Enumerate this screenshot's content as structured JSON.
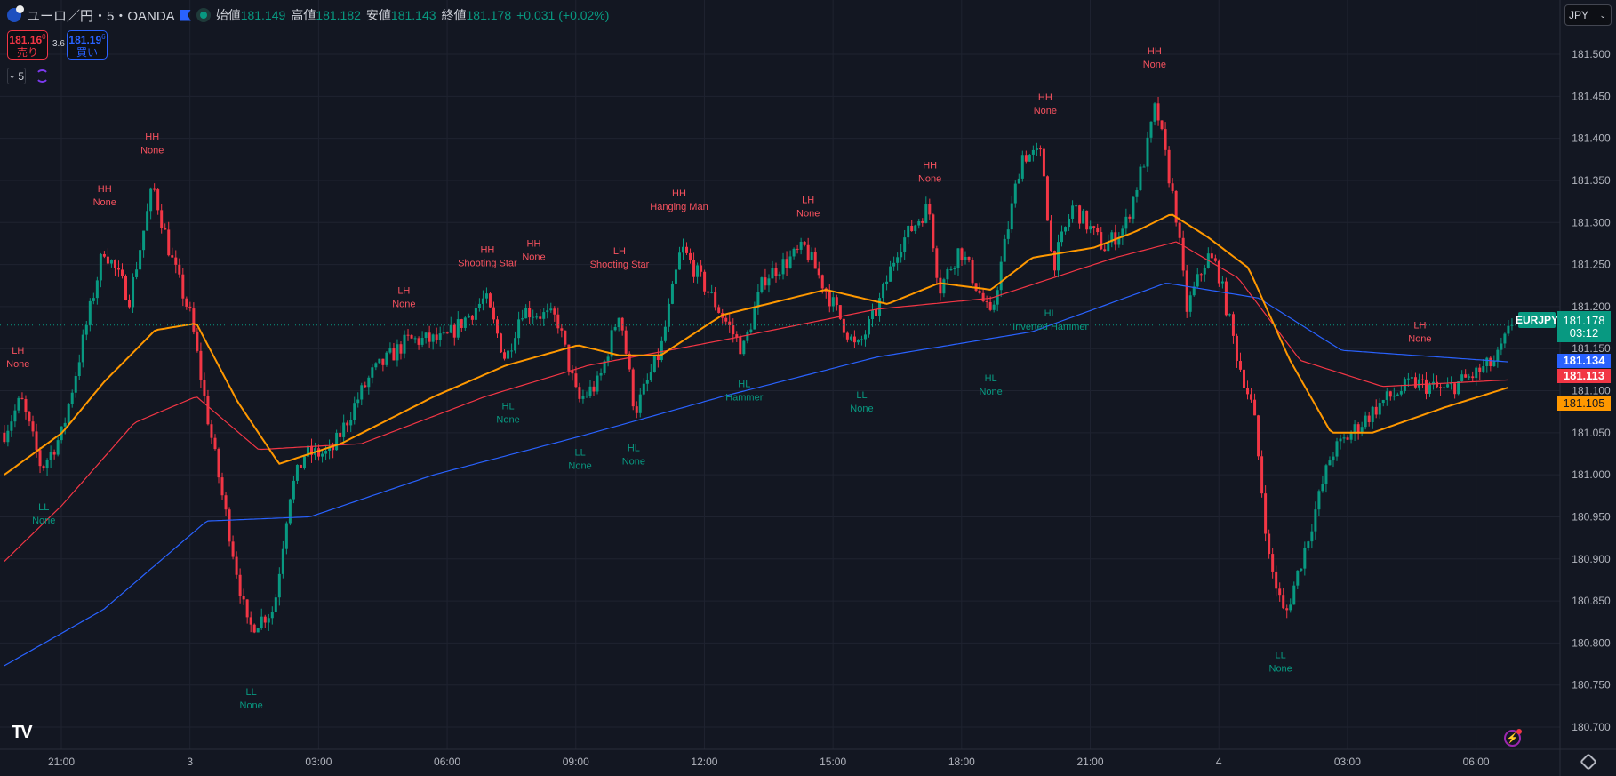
{
  "header": {
    "symbol": "ユーロ／円・5・OANDA",
    "open_label": "始値",
    "open": "181.149",
    "high_label": "高値",
    "high": "181.182",
    "low_label": "安値",
    "low": "181.143",
    "close_label": "終値",
    "close": "181.178",
    "change": "+0.031 (+0.02%)"
  },
  "trade": {
    "sell_price": "181.16",
    "sell_sup": "0",
    "sell_label": "売り",
    "spread": "3.6",
    "buy_price": "181.19",
    "buy_sup": "6",
    "buy_label": "買い"
  },
  "interval": "5",
  "currency": "JPY",
  "badges": {
    "symbol": "EURJPY",
    "price": "181.178",
    "countdown": "03:12",
    "blue": "181.134",
    "red": "181.113",
    "orange": "181.105"
  },
  "colors": {
    "up": "#089981",
    "down": "#f23645",
    "ma_fast": "#ff9800",
    "ma_mid": "#f23645",
    "ma_slow": "#2962ff",
    "label_red": "#f7525f",
    "label_green": "#089981"
  },
  "chart_data": {
    "type": "candlestick",
    "time_unit": "hours from 21:00 (day 2)",
    "ylim": [
      180.68,
      181.53
    ],
    "y_ticks": [
      "181.500",
      "181.450",
      "181.400",
      "181.350",
      "181.300",
      "181.250",
      "181.200",
      "181.150",
      "181.100",
      "181.050",
      "181.000",
      "180.950",
      "180.900",
      "180.850",
      "180.800",
      "180.750",
      "180.700"
    ],
    "x_ticks": [
      {
        "t": 0,
        "label": "21:00"
      },
      {
        "t": 3,
        "label": "3"
      },
      {
        "t": 6,
        "label": "03:00"
      },
      {
        "t": 9,
        "label": "06:00"
      },
      {
        "t": 12,
        "label": "09:00"
      },
      {
        "t": 15,
        "label": "12:00"
      },
      {
        "t": 18,
        "label": "15:00"
      },
      {
        "t": 21,
        "label": "18:00"
      },
      {
        "t": 24,
        "label": "21:00"
      },
      {
        "t": 27,
        "label": "4"
      },
      {
        "t": 30,
        "label": "03:00"
      },
      {
        "t": 33,
        "label": "06:00"
      }
    ],
    "price_path": [
      [
        -1.33,
        181.05
      ],
      [
        -0.94,
        181.09
      ],
      [
        -0.46,
        181.007
      ],
      [
        0.02,
        181.05
      ],
      [
        0.51,
        181.16
      ],
      [
        0.99,
        181.27
      ],
      [
        1.59,
        181.21
      ],
      [
        2.14,
        181.344
      ],
      [
        2.55,
        181.26
      ],
      [
        3.03,
        181.185
      ],
      [
        3.39,
        181.075
      ],
      [
        3.75,
        180.976
      ],
      [
        4.35,
        180.817
      ],
      [
        4.96,
        180.84
      ],
      [
        5.32,
        180.976
      ],
      [
        5.68,
        181.025
      ],
      [
        6.28,
        181.025
      ],
      [
        6.88,
        181.087
      ],
      [
        7.24,
        181.12
      ],
      [
        8.08,
        181.16
      ],
      [
        8.93,
        181.16
      ],
      [
        9.89,
        181.21
      ],
      [
        10.37,
        181.136
      ],
      [
        10.73,
        181.197
      ],
      [
        11.57,
        181.185
      ],
      [
        12.05,
        181.087
      ],
      [
        12.54,
        181.11
      ],
      [
        13.02,
        181.197
      ],
      [
        13.38,
        181.075
      ],
      [
        13.98,
        181.148
      ],
      [
        14.46,
        181.27
      ],
      [
        15.18,
        181.21
      ],
      [
        15.9,
        181.148
      ],
      [
        16.39,
        181.234
      ],
      [
        17.35,
        181.27
      ],
      [
        17.83,
        181.22
      ],
      [
        18.55,
        181.148
      ],
      [
        19.03,
        181.197
      ],
      [
        19.51,
        181.27
      ],
      [
        20.23,
        181.32
      ],
      [
        20.48,
        181.22
      ],
      [
        20.96,
        181.27
      ],
      [
        21.68,
        181.185
      ],
      [
        22.4,
        181.38
      ],
      [
        22.88,
        181.38
      ],
      [
        23.12,
        181.246
      ],
      [
        23.6,
        181.32
      ],
      [
        24.32,
        181.27
      ],
      [
        24.81,
        181.295
      ],
      [
        25.29,
        181.38
      ],
      [
        25.53,
        181.44
      ],
      [
        26.01,
        181.307
      ],
      [
        26.25,
        181.197
      ],
      [
        26.73,
        181.26
      ],
      [
        26.97,
        181.246
      ],
      [
        27.45,
        181.136
      ],
      [
        27.81,
        181.075
      ],
      [
        28.17,
        180.9
      ],
      [
        28.54,
        180.83
      ],
      [
        29.02,
        180.915
      ],
      [
        29.62,
        181.025
      ],
      [
        30.1,
        181.05
      ],
      [
        30.82,
        181.087
      ],
      [
        31.54,
        181.11
      ],
      [
        32.26,
        181.1
      ],
      [
        32.99,
        181.12
      ],
      [
        33.47,
        181.136
      ],
      [
        33.83,
        181.178
      ]
    ],
    "current_price": 181.178,
    "ma_series": [
      {
        "name": "ma_slow",
        "color": "#2962ff",
        "points": [
          [
            -1.33,
            180.773
          ],
          [
            0.99,
            180.84
          ],
          [
            3.39,
            180.945
          ],
          [
            5.8,
            180.95
          ],
          [
            8.69,
            181.0
          ],
          [
            12.05,
            181.045
          ],
          [
            15.42,
            181.093
          ],
          [
            19.03,
            181.14
          ],
          [
            22.64,
            181.17
          ],
          [
            25.77,
            181.228
          ],
          [
            27.93,
            181.21
          ],
          [
            29.86,
            181.148
          ],
          [
            33.83,
            181.134
          ]
        ]
      },
      {
        "name": "ma_mid",
        "color": "#f23645",
        "points": [
          [
            -1.33,
            180.897
          ],
          [
            0.02,
            180.964
          ],
          [
            1.71,
            181.062
          ],
          [
            3.15,
            181.093
          ],
          [
            4.6,
            181.03
          ],
          [
            7.0,
            181.037
          ],
          [
            9.89,
            181.093
          ],
          [
            12.29,
            181.13
          ],
          [
            15.42,
            181.16
          ],
          [
            19.03,
            181.197
          ],
          [
            21.68,
            181.21
          ],
          [
            24.57,
            181.258
          ],
          [
            26.01,
            181.277
          ],
          [
            27.45,
            181.234
          ],
          [
            28.9,
            181.136
          ],
          [
            30.82,
            181.105
          ],
          [
            33.83,
            181.113
          ]
        ]
      },
      {
        "name": "ma_fast",
        "color": "#ff9800",
        "points": [
          [
            -1.33,
            181.0
          ],
          [
            0.02,
            181.05
          ],
          [
            0.99,
            181.11
          ],
          [
            2.19,
            181.172
          ],
          [
            3.15,
            181.18
          ],
          [
            4.11,
            181.087
          ],
          [
            5.08,
            181.013
          ],
          [
            6.52,
            181.037
          ],
          [
            8.69,
            181.093
          ],
          [
            10.37,
            181.13
          ],
          [
            12.05,
            181.154
          ],
          [
            13.02,
            181.142
          ],
          [
            13.98,
            181.142
          ],
          [
            15.42,
            181.19
          ],
          [
            17.83,
            181.22
          ],
          [
            19.27,
            181.203
          ],
          [
            20.48,
            181.228
          ],
          [
            21.68,
            181.22
          ],
          [
            22.64,
            181.258
          ],
          [
            24.08,
            181.27
          ],
          [
            25.05,
            181.289
          ],
          [
            25.89,
            181.31
          ],
          [
            26.73,
            181.283
          ],
          [
            27.69,
            181.246
          ],
          [
            28.66,
            181.136
          ],
          [
            29.62,
            181.05
          ],
          [
            30.58,
            181.05
          ],
          [
            32.26,
            181.08
          ],
          [
            33.83,
            181.105
          ]
        ]
      }
    ],
    "annotations": [
      {
        "t": -1.01,
        "p": 181.144,
        "kind": "high",
        "l1": "LH",
        "l2": "None"
      },
      {
        "t": 1.01,
        "p": 181.336,
        "kind": "high",
        "l1": "HH",
        "l2": "None"
      },
      {
        "t": 2.12,
        "p": 181.398,
        "kind": "high",
        "l1": "HH",
        "l2": "None"
      },
      {
        "t": -0.41,
        "p": 180.958,
        "kind": "low",
        "l1": "LL",
        "l2": "None"
      },
      {
        "t": 4.43,
        "p": 180.738,
        "kind": "low",
        "l1": "LL",
        "l2": "None"
      },
      {
        "t": 7.99,
        "p": 181.215,
        "kind": "high",
        "l1": "LH",
        "l2": "None"
      },
      {
        "t": 9.94,
        "p": 181.264,
        "kind": "high",
        "l1": "HH",
        "l2": "Shooting Star"
      },
      {
        "t": 11.02,
        "p": 181.271,
        "kind": "high",
        "l1": "HH",
        "l2": "None"
      },
      {
        "t": 10.42,
        "p": 181.078,
        "kind": "low",
        "l1": "HL",
        "l2": "None"
      },
      {
        "t": 13.02,
        "p": 181.262,
        "kind": "high",
        "l1": "LH",
        "l2": "Shooting Star"
      },
      {
        "t": 12.1,
        "p": 181.023,
        "kind": "low",
        "l1": "LL",
        "l2": "None"
      },
      {
        "t": 13.35,
        "p": 181.028,
        "kind": "low",
        "l1": "HL",
        "l2": "None"
      },
      {
        "t": 14.41,
        "p": 181.331,
        "kind": "high",
        "l1": "HH",
        "l2": "Hanging Man"
      },
      {
        "t": 15.93,
        "p": 181.104,
        "kind": "low",
        "l1": "HL",
        "l2": "Hammer"
      },
      {
        "t": 17.42,
        "p": 181.323,
        "kind": "high",
        "l1": "LH",
        "l2": "None"
      },
      {
        "t": 18.67,
        "p": 181.091,
        "kind": "low",
        "l1": "LL",
        "l2": "None"
      },
      {
        "t": 20.26,
        "p": 181.364,
        "kind": "high",
        "l1": "HH",
        "l2": "None"
      },
      {
        "t": 21.68,
        "p": 181.111,
        "kind": "low",
        "l1": "HL",
        "l2": "None"
      },
      {
        "t": 23.07,
        "p": 181.188,
        "kind": "low",
        "l1": "HL",
        "l2": "Inverted Hammer"
      },
      {
        "t": 22.95,
        "p": 181.445,
        "kind": "high",
        "l1": "HH",
        "l2": "None"
      },
      {
        "t": 25.5,
        "p": 181.5,
        "kind": "high",
        "l1": "HH",
        "l2": "None"
      },
      {
        "t": 28.44,
        "p": 180.782,
        "kind": "low",
        "l1": "LL",
        "l2": "None"
      },
      {
        "t": 31.69,
        "p": 181.174,
        "kind": "high",
        "l1": "LH",
        "l2": "None"
      }
    ]
  }
}
